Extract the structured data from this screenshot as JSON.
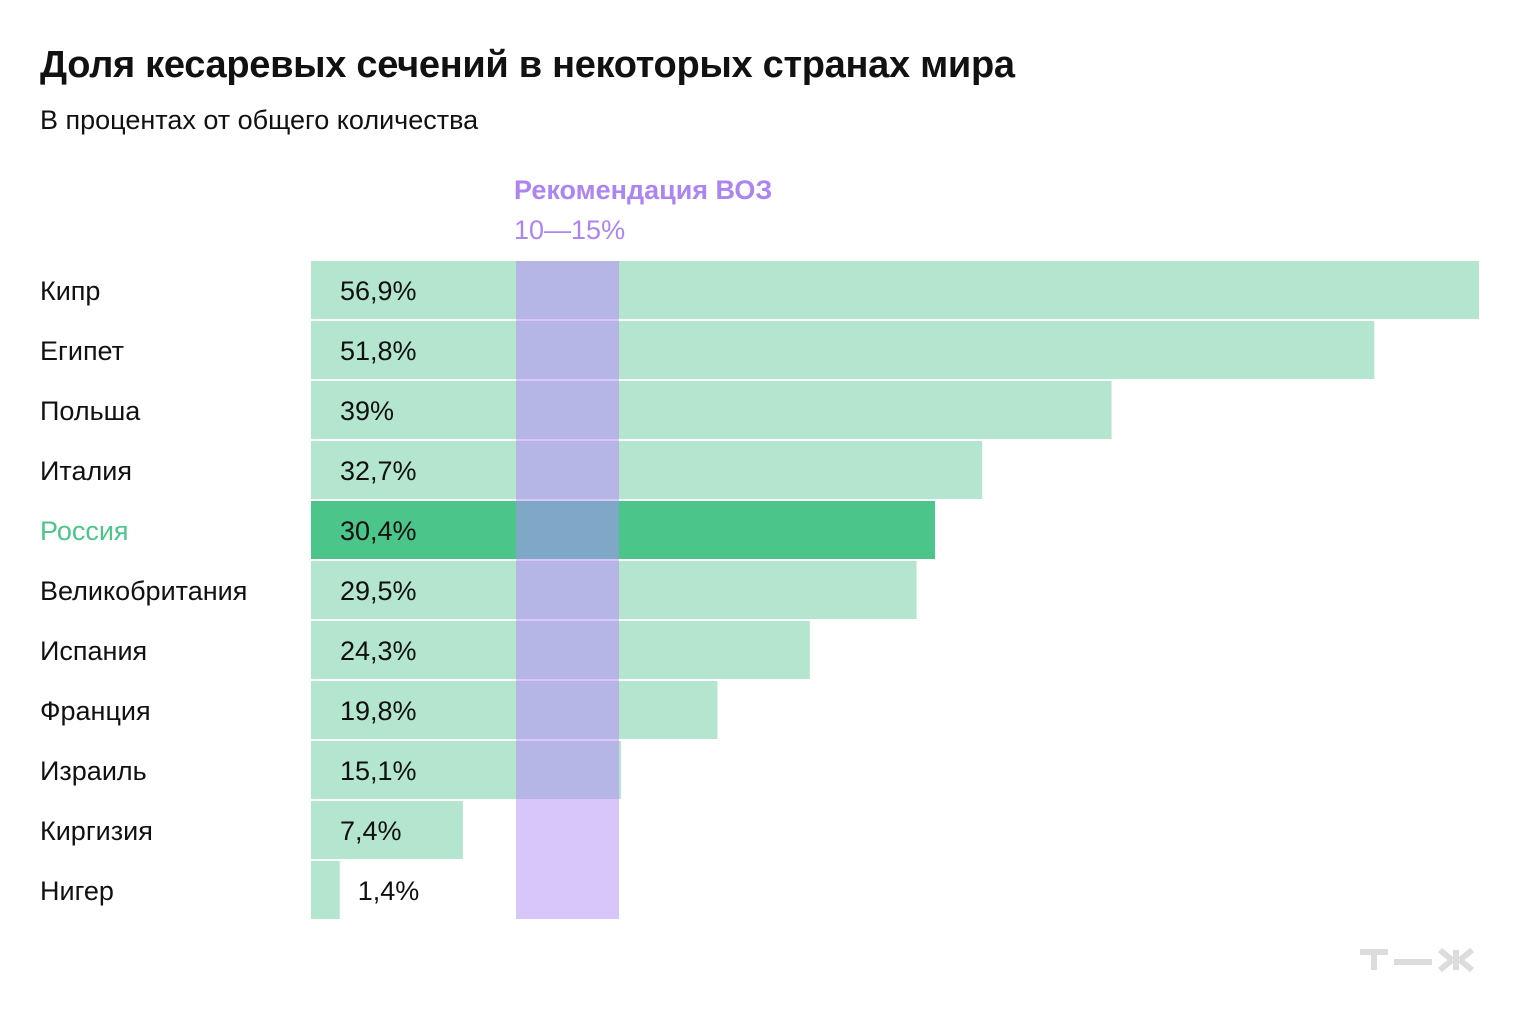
{
  "title": "Доля кесаревых сечений в некоторых странах мира",
  "subtitle": "В процентах от общего количества",
  "logo_text": "Т—Ж",
  "colors": {
    "bar": "#b3e5cf",
    "bar_highlight": "#4bc58a",
    "highlight_label": "#4bc58a",
    "who_band": "#d8c6fb",
    "who_overlap": "#b6b6e6",
    "who_overlap_highlight": "#7ea8c6",
    "who_text": "#ad85f3",
    "logo": "#dcdcdc"
  },
  "chart_data": {
    "type": "bar",
    "orientation": "horizontal",
    "title": "Доля кесаревых сечений в некоторых странах мира",
    "subtitle": "В процентах от общего количества",
    "unit": "%",
    "categories": [
      "Кипр",
      "Египет",
      "Польша",
      "Италия",
      "Россия",
      "Великобритания",
      "Испания",
      "Франция",
      "Израиль",
      "Киргизия",
      "Нигер"
    ],
    "values": [
      56.9,
      51.8,
      39,
      32.7,
      30.4,
      29.5,
      24.3,
      19.8,
      15.1,
      7.4,
      1.4
    ],
    "value_labels": [
      "56,9%",
      "51,8%",
      "39%",
      "32,7%",
      "30,4%",
      "29,5%",
      "24,3%",
      "19,8%",
      "15,1%",
      "7,4%",
      "1,4%"
    ],
    "highlight": "Россия",
    "xlim": [
      0,
      56.9
    ],
    "reference_band": {
      "label": "Рекомендация ВОЗ",
      "range_label": "10—15%",
      "from": 10,
      "to": 15
    }
  }
}
